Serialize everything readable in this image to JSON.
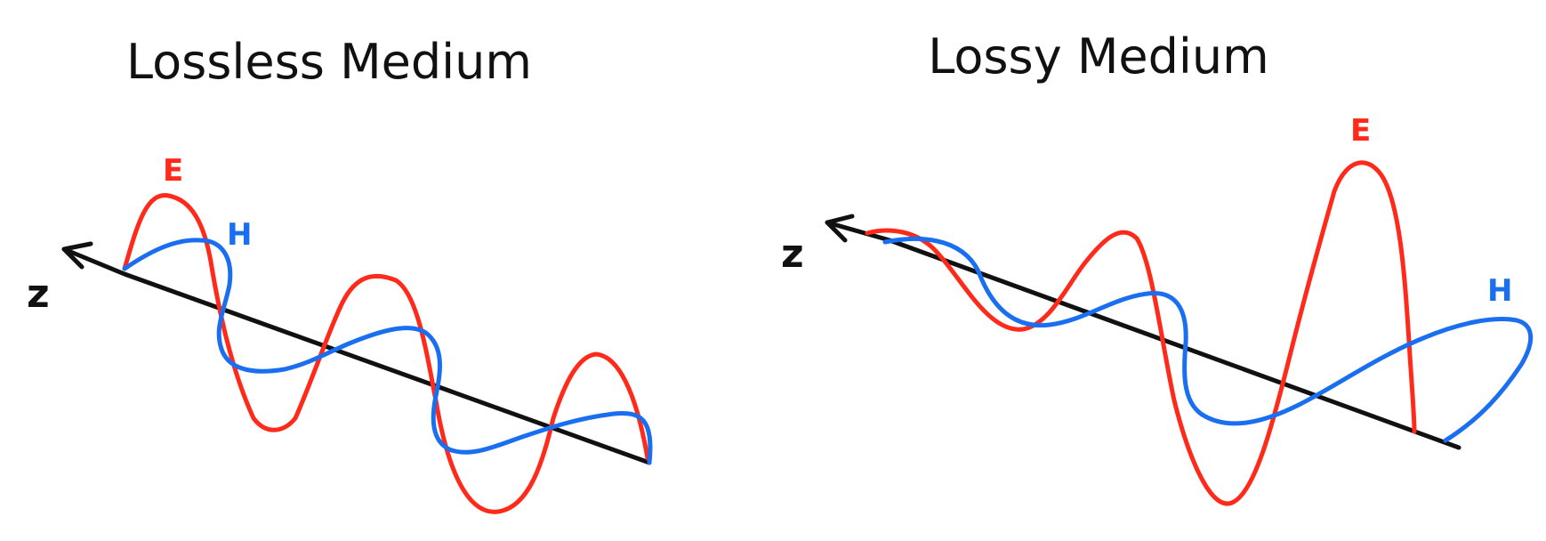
{
  "colors": {
    "e_field": "#ff2a1a",
    "h_field": "#1a6ff0",
    "axis": "#111111"
  },
  "panels": [
    {
      "title": "Lossless Medium",
      "axis_label": "z",
      "e_label": "E",
      "h_label": "H"
    },
    {
      "title": "Lossy Medium",
      "axis_label": "z",
      "e_label": "E",
      "h_label": "H"
    }
  ]
}
